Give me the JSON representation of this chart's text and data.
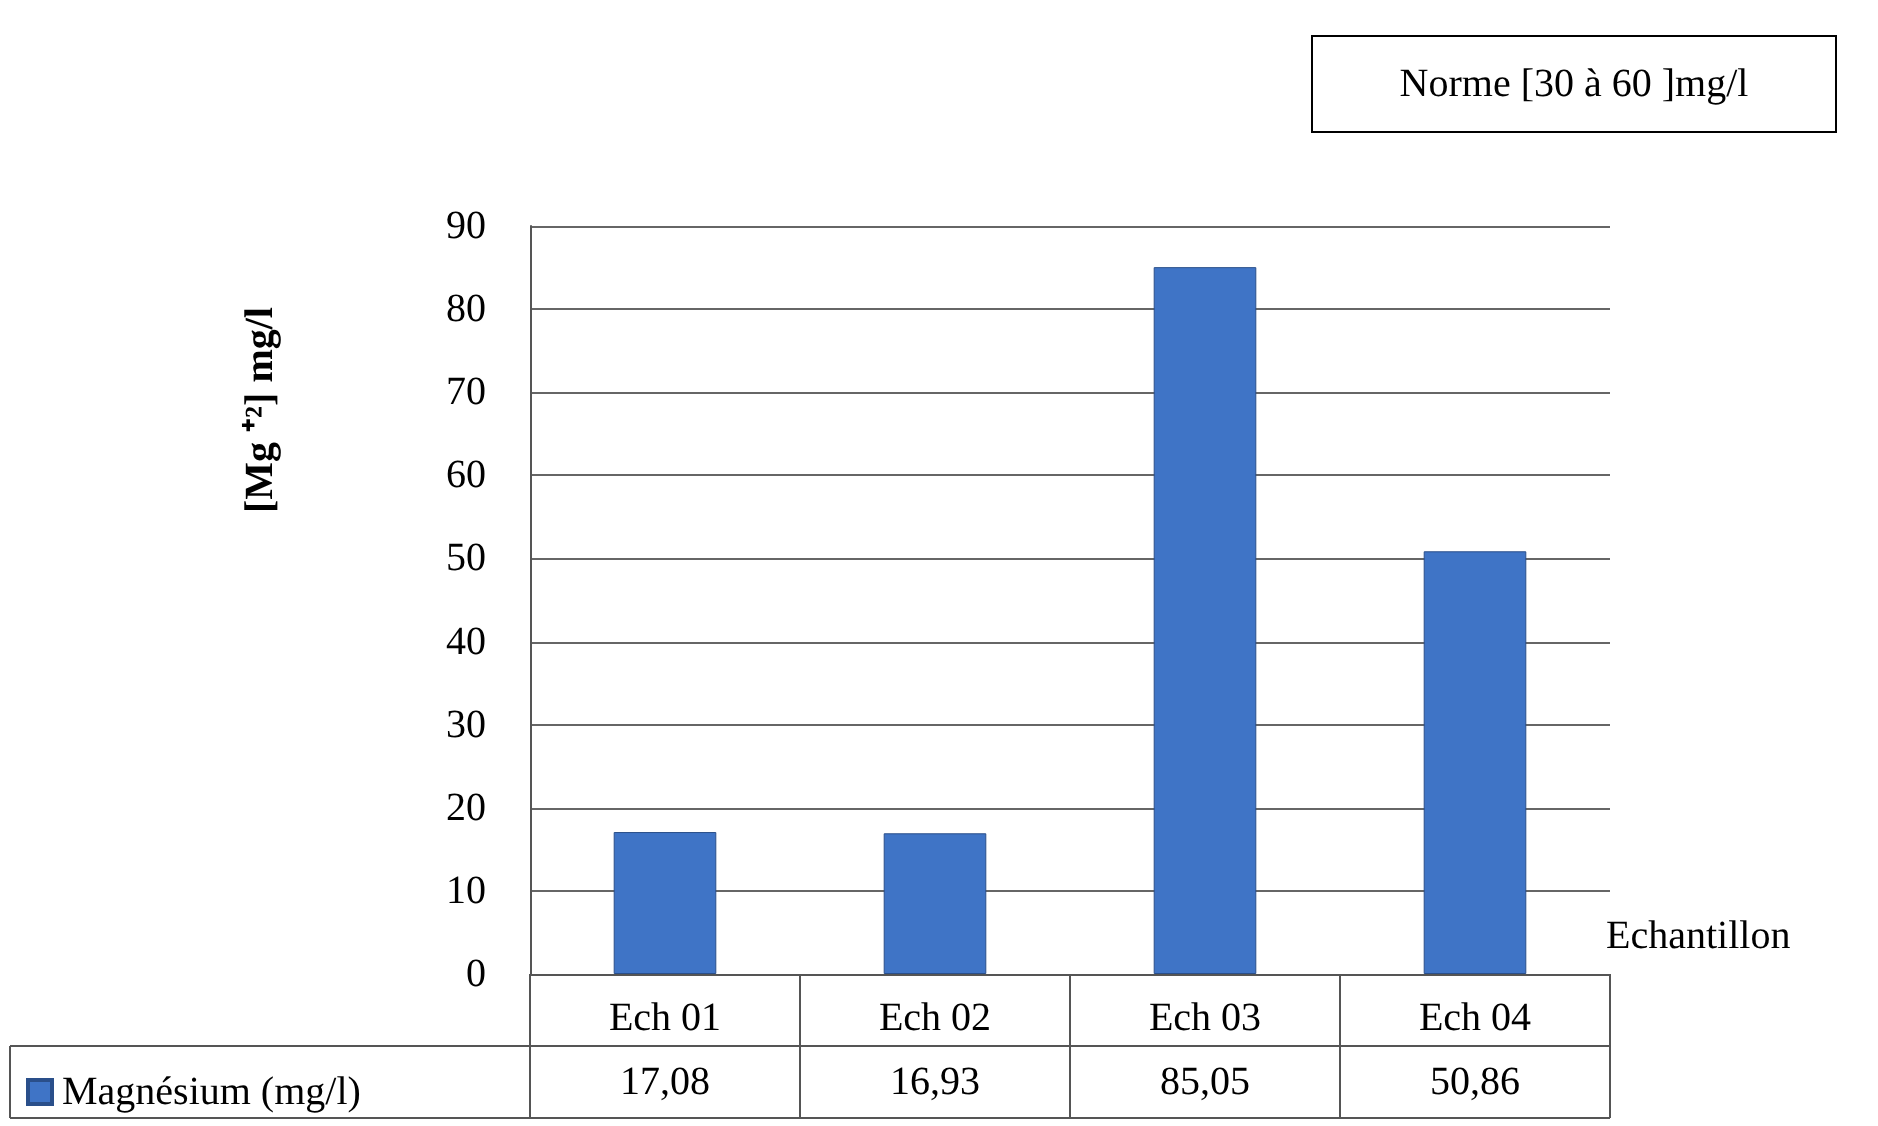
{
  "chart_data": {
    "type": "bar",
    "ylabel": "[Mg ⁺²] mg/l",
    "xlabel": "Echantillon",
    "categories": [
      "Ech 01",
      "Ech 02",
      "Ech 03",
      "Ech 04"
    ],
    "series": [
      {
        "name": "Magnésium (mg/l)",
        "color": "#3f74c6",
        "values": [
          17.08,
          16.93,
          85.05,
          50.86
        ],
        "value_labels": [
          "17,08",
          "16,93",
          "85,05",
          "50,86"
        ]
      }
    ],
    "ylim": [
      0,
      90
    ],
    "yticks": [
      0,
      10,
      20,
      30,
      40,
      50,
      60,
      70,
      80,
      90
    ],
    "grid": "y",
    "legend": "bottom left",
    "annotations": [
      "Norme [30 à 60 ]mg/l"
    ]
  }
}
